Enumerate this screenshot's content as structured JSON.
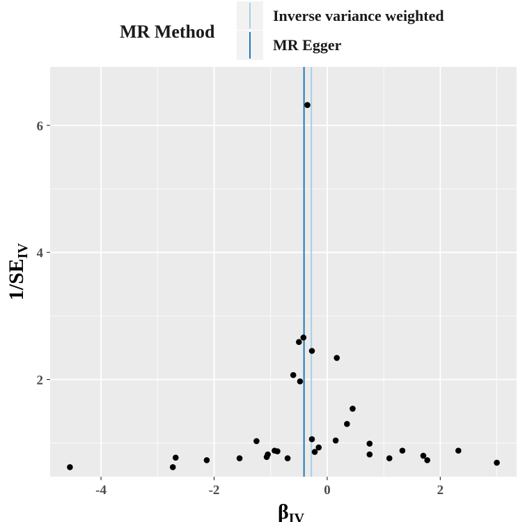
{
  "chart_data": {
    "type": "scatter",
    "xlabel": "β",
    "xlabel_sub": "IV",
    "ylabel": "1/SE",
    "ylabel_sub": "IV",
    "xlim": [
      -4.9,
      3.35
    ],
    "ylim": [
      0.47,
      6.92
    ],
    "x_ticks": [
      -4,
      -2,
      0,
      2
    ],
    "x_tick_labels": [
      "-4",
      "-2",
      "0",
      "2"
    ],
    "y_ticks": [
      2,
      4,
      6
    ],
    "y_tick_labels": [
      "2",
      "4",
      "6"
    ],
    "grid": true,
    "legend": {
      "title": "MR Method",
      "placement": "top",
      "entries": [
        {
          "label": "Inverse variance weighted",
          "color": "#a6cee3"
        },
        {
          "label": "MR Egger",
          "color": "#1f78b4"
        }
      ]
    },
    "vlines": [
      {
        "name": "Inverse variance weighted",
        "x": -0.28,
        "color": "#a6cee3"
      },
      {
        "name": "MR Egger",
        "x": -0.41,
        "color": "#1f78b4"
      }
    ],
    "points": [
      {
        "x": -0.35,
        "y": 6.32
      },
      {
        "x": -0.42,
        "y": 2.66
      },
      {
        "x": -0.5,
        "y": 2.59
      },
      {
        "x": -0.27,
        "y": 2.45
      },
      {
        "x": 0.17,
        "y": 2.34
      },
      {
        "x": -0.6,
        "y": 2.07
      },
      {
        "x": -0.48,
        "y": 1.97
      },
      {
        "x": 0.45,
        "y": 1.54
      },
      {
        "x": 0.35,
        "y": 1.3
      },
      {
        "x": -0.27,
        "y": 1.06
      },
      {
        "x": 0.15,
        "y": 1.04
      },
      {
        "x": -1.25,
        "y": 1.03
      },
      {
        "x": 0.75,
        "y": 0.99
      },
      {
        "x": -0.15,
        "y": 0.93
      },
      {
        "x": -0.93,
        "y": 0.88
      },
      {
        "x": -0.88,
        "y": 0.87
      },
      {
        "x": -0.22,
        "y": 0.86
      },
      {
        "x": 1.33,
        "y": 0.88
      },
      {
        "x": 2.32,
        "y": 0.88
      },
      {
        "x": -1.05,
        "y": 0.82
      },
      {
        "x": 0.75,
        "y": 0.82
      },
      {
        "x": -1.07,
        "y": 0.78
      },
      {
        "x": 1.7,
        "y": 0.8
      },
      {
        "x": -2.68,
        "y": 0.77
      },
      {
        "x": -1.55,
        "y": 0.76
      },
      {
        "x": -0.7,
        "y": 0.76
      },
      {
        "x": 1.1,
        "y": 0.76
      },
      {
        "x": -2.13,
        "y": 0.73
      },
      {
        "x": 1.77,
        "y": 0.73
      },
      {
        "x": 3.0,
        "y": 0.69
      },
      {
        "x": -2.73,
        "y": 0.62
      },
      {
        "x": -4.55,
        "y": 0.62
      }
    ],
    "point_color": "#000000",
    "panel_color": "#ebebeb",
    "grid_color": "#ffffff"
  }
}
